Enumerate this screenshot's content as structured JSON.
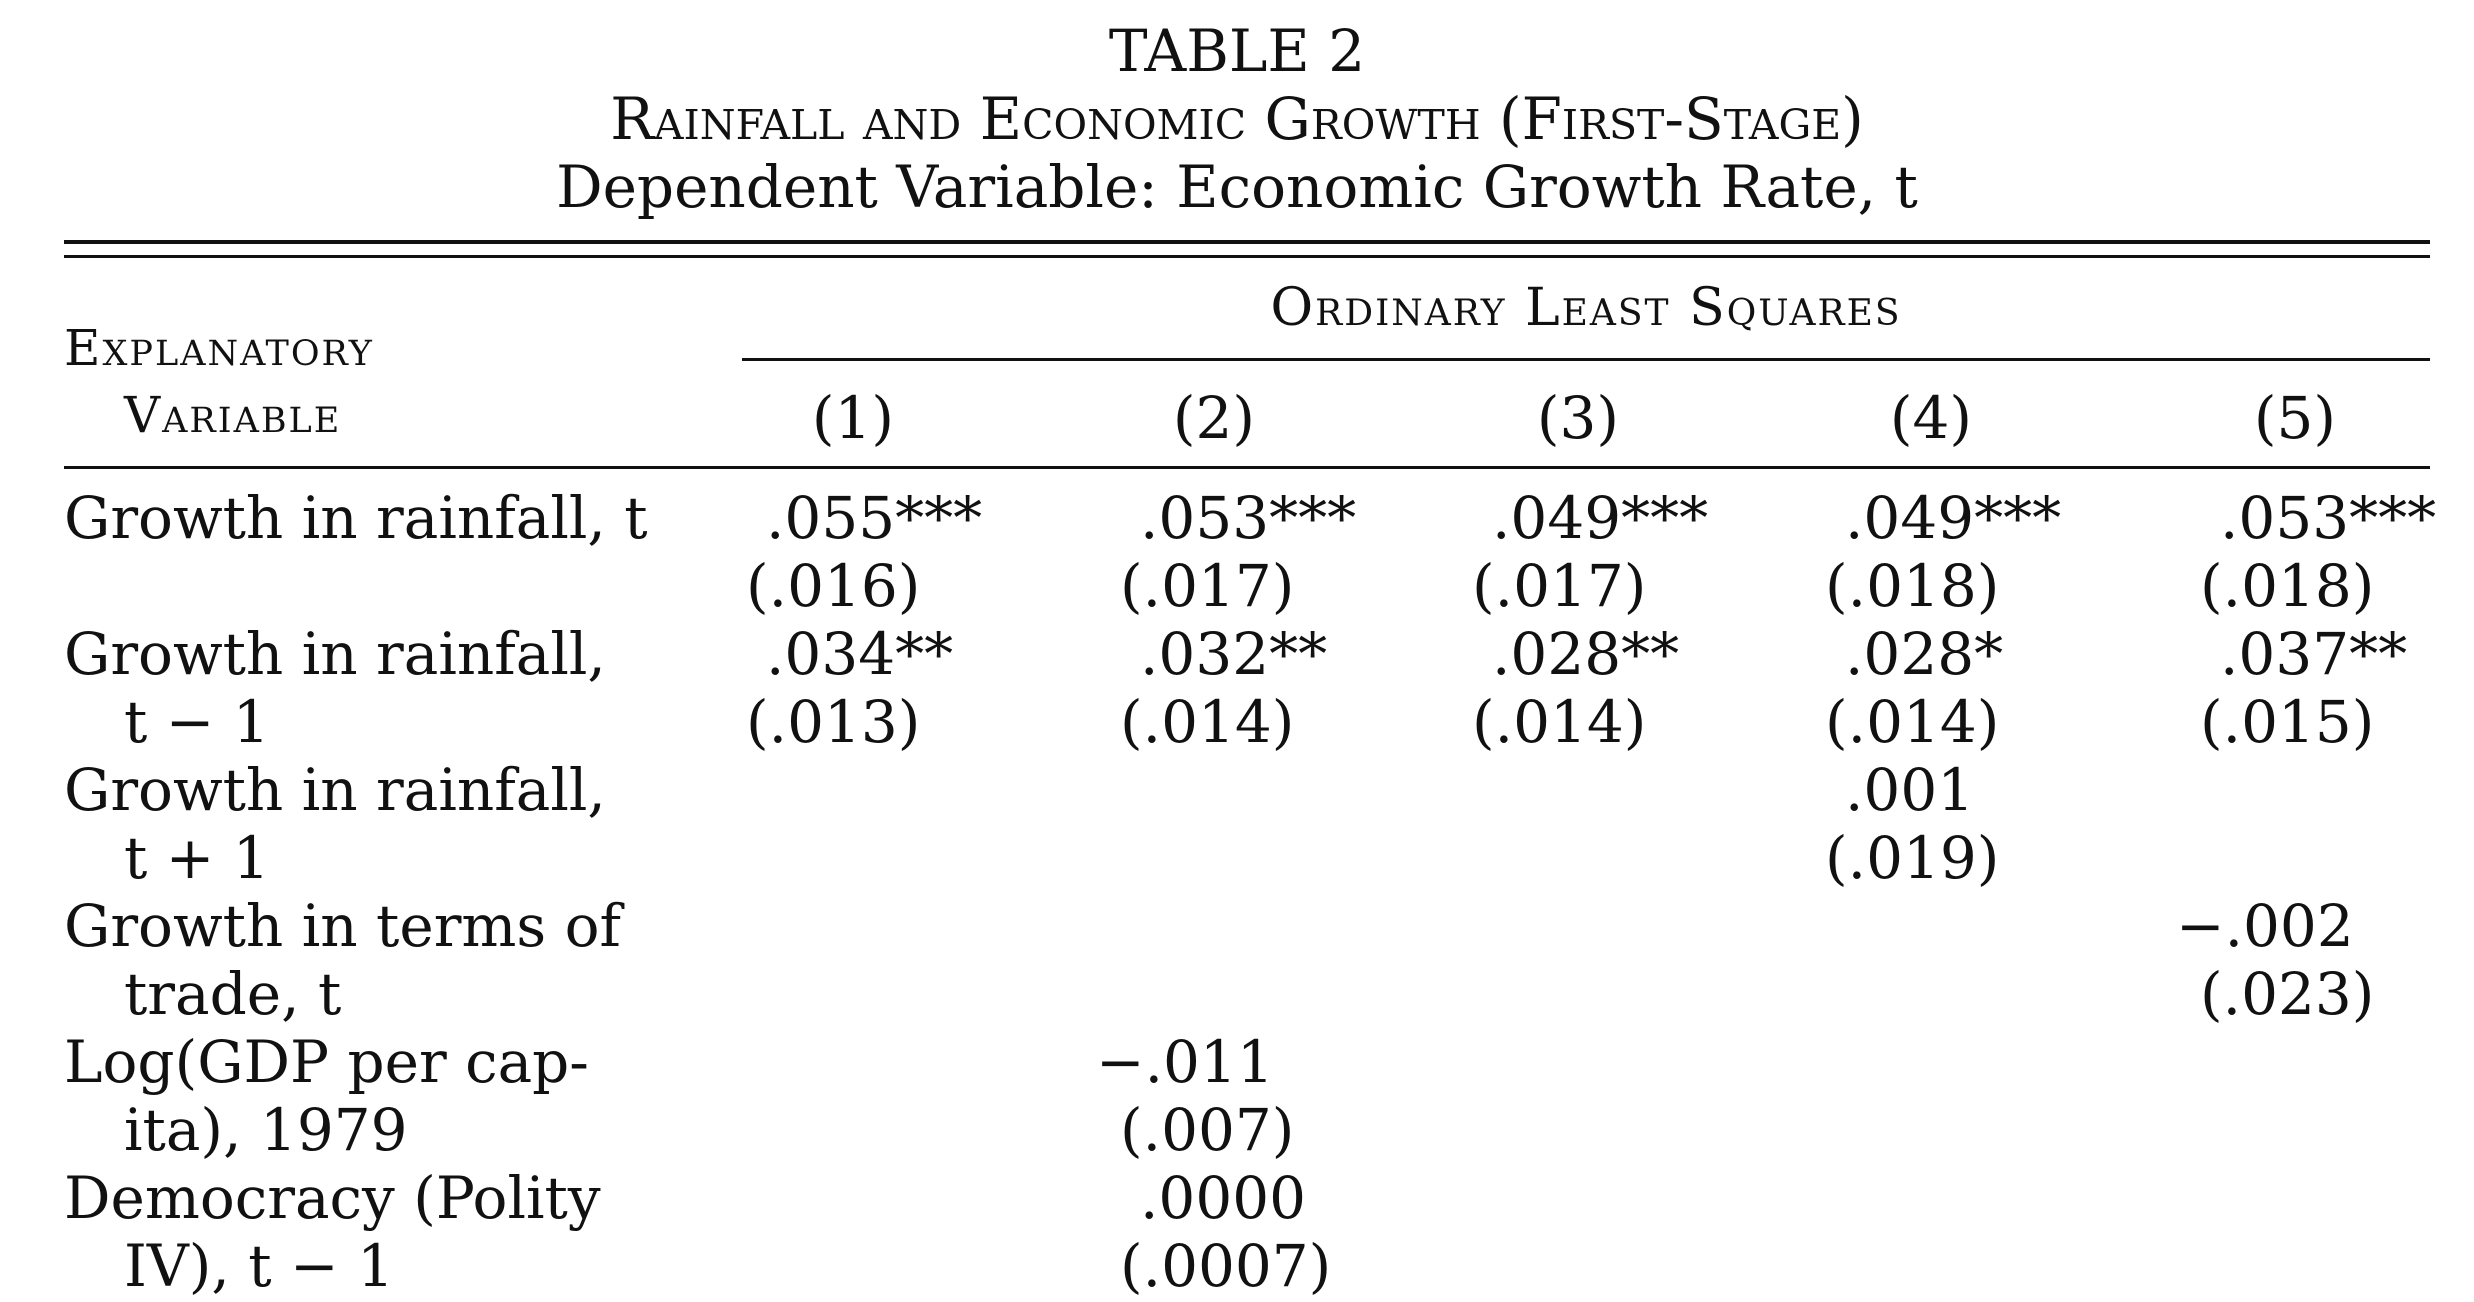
{
  "table": {
    "title": "TABLE 2",
    "subtitle": "Rainfall and Economic Growth (First-Stage)",
    "dependent_variable": "Dependent Variable: Economic Growth Rate, t",
    "stub_header_line1": "Explanatory",
    "stub_header_line2": "Variable",
    "group_header": "Ordinary Least Squares",
    "columns": [
      "(1)",
      "(2)",
      "(3)",
      "(4)",
      "(5)"
    ],
    "rows": [
      {
        "label_line1": "Growth in rainfall, t",
        "label_line2": "",
        "coef": [
          ".055***",
          ".053***",
          ".049***",
          ".049***",
          ".053***"
        ],
        "se": [
          "(.016)",
          "(.017)",
          "(.017)",
          "(.018)",
          "(.018)"
        ]
      },
      {
        "label_line1": "Growth in rainfall,",
        "label_line2": "t − 1",
        "coef": [
          ".034**",
          ".032**",
          ".028**",
          ".028*",
          ".037**"
        ],
        "se": [
          "(.013)",
          "(.014)",
          "(.014)",
          "(.014)",
          "(.015)"
        ]
      },
      {
        "label_line1": "Growth in rainfall,",
        "label_line2": "t + 1",
        "coef": [
          "",
          "",
          "",
          ".001",
          ""
        ],
        "se": [
          "",
          "",
          "",
          "(.019)",
          ""
        ]
      },
      {
        "label_line1": "Growth in terms of",
        "label_line2": "trade, t",
        "coef": [
          "",
          "",
          "",
          "",
          "−.002"
        ],
        "se": [
          "",
          "",
          "",
          "",
          "(.023)"
        ]
      },
      {
        "label_line1": "Log(GDP per cap-",
        "label_line2": "ita), 1979",
        "coef": [
          "",
          "−.011",
          "",
          "",
          ""
        ],
        "se": [
          "",
          "(.007)",
          "",
          "",
          ""
        ]
      },
      {
        "label_line1": "Democracy (Polity",
        "label_line2": "IV), t − 1",
        "coef": [
          "",
          ".0000",
          "",
          "",
          ""
        ],
        "se": [
          "",
          "(.0007)",
          "",
          "",
          ""
        ]
      }
    ]
  }
}
